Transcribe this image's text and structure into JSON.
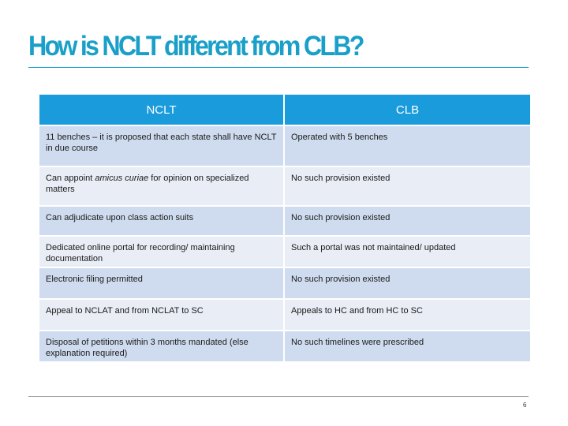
{
  "title": "How is NCLT different from CLB?",
  "table": {
    "headers": [
      "NCLT",
      "CLB"
    ],
    "rows": [
      {
        "nclt_parts": [
          "11 benches – it is proposed that each state shall have NCLT in due course",
          "",
          ""
        ],
        "clb": "Operated with 5 benches"
      },
      {
        "nclt_parts": [
          "Can appoint ",
          "amicus curiae",
          " for opinion on specialized matters"
        ],
        "clb": "No such provision existed"
      },
      {
        "nclt_parts": [
          "Can adjudicate upon class action suits",
          "",
          ""
        ],
        "clb": "No such provision existed"
      },
      {
        "nclt_parts": [
          "Dedicated online portal for recording/ maintaining documentation",
          "",
          ""
        ],
        "clb": "Such a portal was not maintained/ updated"
      },
      {
        "nclt_parts": [
          "Electronic filing permitted",
          "",
          ""
        ],
        "clb": "No such provision existed"
      },
      {
        "nclt_parts": [
          "Appeal to NCLAT and from NCLAT to SC",
          "",
          ""
        ],
        "clb": "Appeals to HC and from HC to SC"
      },
      {
        "nclt_parts": [
          "Disposal of petitions within 3 months mandated (else explanation required)",
          "",
          ""
        ],
        "clb": "No such timelines were prescribed"
      }
    ]
  },
  "page_number": "6",
  "colors": {
    "title": "#1aa0c8",
    "header_bg": "#1a9bdc",
    "row_dark": "#cfdcef",
    "row_light": "#e8edf6"
  }
}
